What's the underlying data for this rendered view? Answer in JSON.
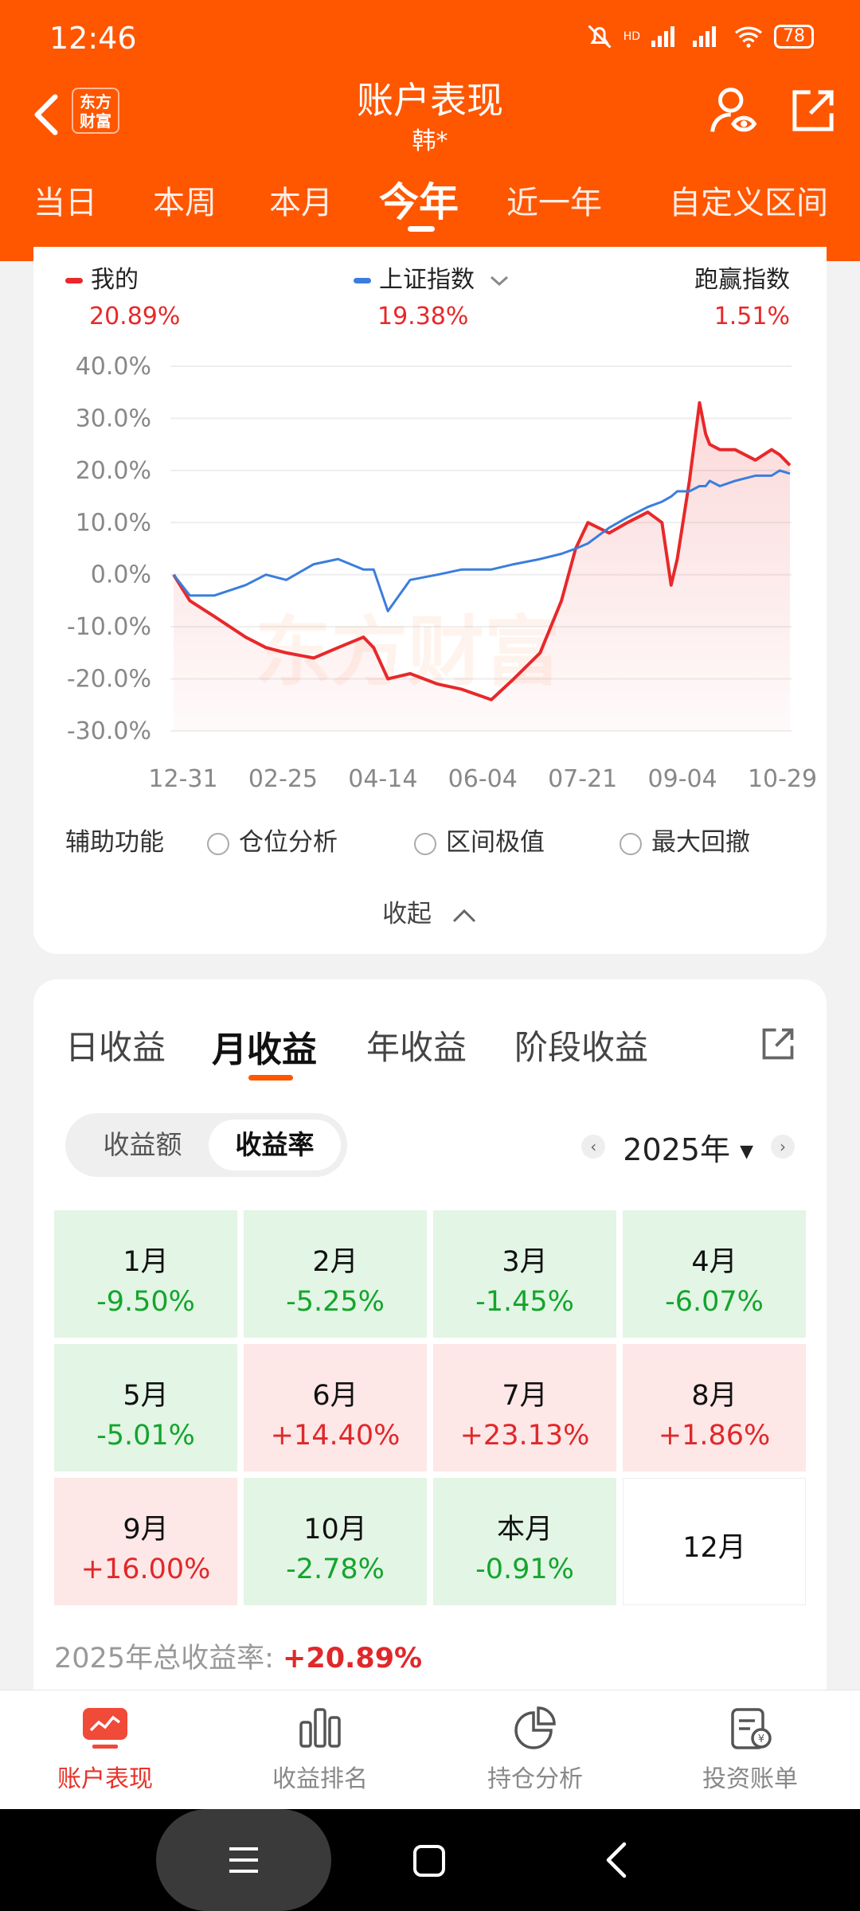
{
  "status_bar": {
    "time": "12:46",
    "battery": "78",
    "signal": "HD",
    "wifi": "wifi-icon"
  },
  "header": {
    "title": "账户表现",
    "subtitle": "韩*",
    "logo_text": "东方财富",
    "tabs": [
      "当日",
      "本周",
      "本月",
      "今年",
      "近一年",
      "自定义区间"
    ],
    "active_tab": "今年"
  },
  "chart_card": {
    "legend": [
      {
        "label": "我的",
        "value": "20.89%",
        "color": "#e8282a"
      },
      {
        "label": "上证指数",
        "value": "19.38%",
        "color": "#3b7ddd"
      },
      {
        "label": "跑赢指数",
        "value": "1.51%"
      }
    ],
    "watermark": "东方财富",
    "aux_label": "辅助功能",
    "aux_options": [
      "仓位分析",
      "区间极值",
      "最大回撤"
    ],
    "collapse_label": "收起"
  },
  "chart_data": {
    "type": "line",
    "x_ticks": [
      "12-31",
      "02-25",
      "04-14",
      "06-04",
      "07-21",
      "09-04",
      "10-29"
    ],
    "y_ticks": [
      "40.0%",
      "30.0%",
      "20.0%",
      "10.0%",
      "0.0%",
      "-10.0%",
      "-20.0%",
      "-30.0%"
    ],
    "ylim": [
      -30,
      40
    ],
    "grid": true,
    "series": [
      {
        "name": "我的",
        "color": "#e8282a",
        "fill": true,
        "x": [
          "12-31",
          "01-08",
          "01-20",
          "02-05",
          "02-15",
          "02-25",
          "03-08",
          "03-20",
          "04-02",
          "04-07",
          "04-14",
          "04-25",
          "05-08",
          "05-20",
          "06-04",
          "06-15",
          "06-28",
          "07-08",
          "07-15",
          "07-21",
          "08-01",
          "08-10",
          "08-20",
          "08-27",
          "09-01",
          "09-04",
          "09-10",
          "09-15",
          "09-18",
          "09-20",
          "09-25",
          "10-02",
          "10-12",
          "10-20",
          "10-24",
          "10-29"
        ],
        "values": [
          0,
          -5,
          -8,
          -12,
          -14,
          -15,
          -16,
          -14,
          -12,
          -14,
          -20,
          -19,
          -21,
          -22,
          -24,
          -20,
          -15,
          -5,
          5,
          10,
          8,
          10,
          12,
          10,
          -2,
          3,
          18,
          33,
          27,
          25,
          24,
          24,
          22,
          24,
          23,
          21
        ]
      },
      {
        "name": "上证指数",
        "color": "#3b7ddd",
        "x": [
          "12-31",
          "01-08",
          "01-20",
          "02-05",
          "02-15",
          "02-25",
          "03-08",
          "03-20",
          "04-02",
          "04-07",
          "04-14",
          "04-25",
          "05-08",
          "05-20",
          "06-04",
          "06-15",
          "06-28",
          "07-08",
          "07-15",
          "07-21",
          "08-01",
          "08-10",
          "08-20",
          "08-27",
          "09-01",
          "09-04",
          "09-10",
          "09-15",
          "09-18",
          "09-20",
          "09-25",
          "10-02",
          "10-12",
          "10-20",
          "10-24",
          "10-29"
        ],
        "values": [
          0,
          -4,
          -4,
          -2,
          0,
          -1,
          2,
          3,
          1,
          1,
          -7,
          -1,
          0,
          1,
          1,
          2,
          3,
          4,
          5,
          6,
          9,
          11,
          13,
          14,
          15,
          16,
          16,
          17,
          17,
          18,
          17,
          18,
          19,
          19,
          20,
          19.4
        ]
      }
    ]
  },
  "returns_card": {
    "tabs": [
      "日收益",
      "月收益",
      "年收益",
      "阶段收益"
    ],
    "active_tab": "月收益",
    "segments": [
      "收益额",
      "收益率"
    ],
    "active_segment": "收益率",
    "year": "2025年",
    "months": [
      {
        "label": "1月",
        "value": "-9.50%",
        "state": "neg"
      },
      {
        "label": "2月",
        "value": "-5.25%",
        "state": "neg"
      },
      {
        "label": "3月",
        "value": "-1.45%",
        "state": "neg"
      },
      {
        "label": "4月",
        "value": "-6.07%",
        "state": "neg"
      },
      {
        "label": "5月",
        "value": "-5.01%",
        "state": "neg"
      },
      {
        "label": "6月",
        "value": "+14.40%",
        "state": "pos"
      },
      {
        "label": "7月",
        "value": "+23.13%",
        "state": "pos"
      },
      {
        "label": "8月",
        "value": "+1.86%",
        "state": "pos"
      },
      {
        "label": "9月",
        "value": "+16.00%",
        "state": "pos"
      },
      {
        "label": "10月",
        "value": "-2.78%",
        "state": "neg"
      },
      {
        "label": "本月",
        "value": "-0.91%",
        "state": "neg"
      },
      {
        "label": "12月",
        "value": "",
        "state": "none"
      }
    ],
    "total_label": "2025年总收益率:",
    "total_value": "+20.89%"
  },
  "bottom_nav": {
    "items": [
      {
        "label": "账户表现",
        "icon": "chart-screen-icon",
        "active": true
      },
      {
        "label": "收益排名",
        "icon": "bar-chart-icon",
        "active": false
      },
      {
        "label": "持仓分析",
        "icon": "pie-chart-icon",
        "active": false
      },
      {
        "label": "投资账单",
        "icon": "bill-icon",
        "active": false
      }
    ]
  }
}
